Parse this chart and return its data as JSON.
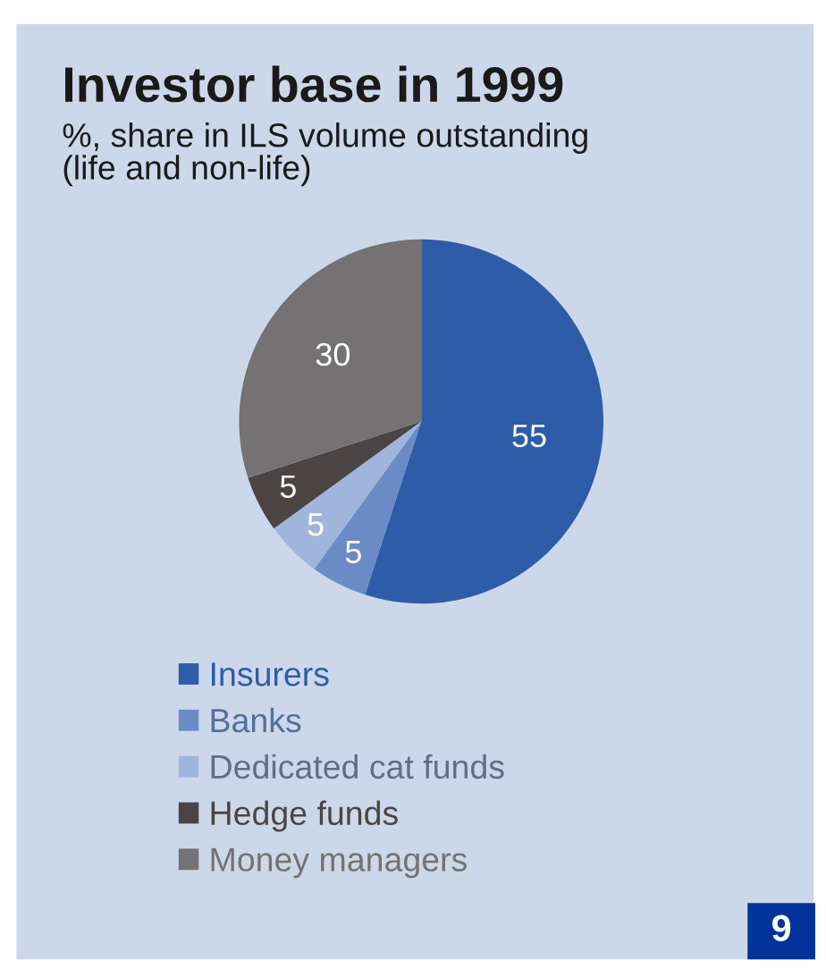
{
  "chart_data": {
    "type": "pie",
    "title": "Investor base in 1999",
    "subtitle": "%, share in ILS volume outstanding\n(life and non-life)",
    "categories": [
      "Insurers",
      "Banks",
      "Dedicated cat funds",
      "Hedge funds",
      "Money managers"
    ],
    "values": [
      55,
      5,
      5,
      5,
      30
    ],
    "colors": [
      "#2e5ca8",
      "#6a8bc5",
      "#a0b5dc",
      "#4a4544",
      "#747272"
    ],
    "data_labels": true,
    "legend": "bottom left",
    "annotations": [
      "9"
    ]
  }
}
